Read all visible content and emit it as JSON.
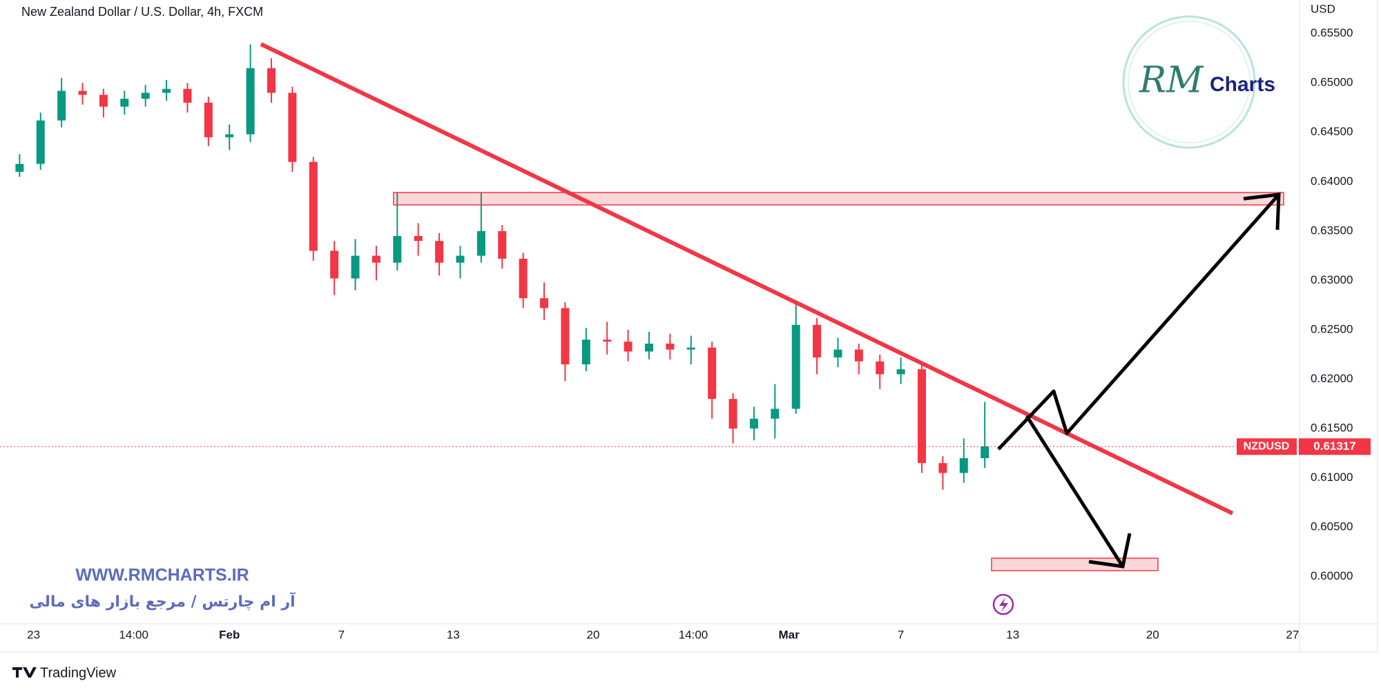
{
  "chart_data": {
    "type": "candlestick",
    "title": "New Zealand Dollar / U.S. Dollar, 4h, FXCM",
    "currency_label": "USD",
    "symbol": "NZDUSD",
    "last_price": 0.61317,
    "up_color": "#089981",
    "down_color": "#f23645",
    "grid": false,
    "x": [
      -0.5,
      0.25,
      1,
      1.75,
      2.5,
      3.25,
      4,
      4.75,
      5.5,
      6.25,
      7,
      7.75,
      8.5,
      9.25,
      10,
      10.75,
      11.5,
      12.25,
      13,
      13.75,
      14.5,
      15.25,
      16,
      16.75,
      17.5,
      18.25,
      19,
      19.75,
      20.5,
      21.25,
      22,
      22.75,
      23.5,
      24.25,
      25,
      25.75,
      26.5,
      27.25,
      28,
      28.75,
      29.5,
      30.25,
      31,
      31.75,
      32.5,
      33.25,
      34
    ],
    "open": [
      0.641,
      0.6418,
      0.6462,
      0.6492,
      0.6488,
      0.6476,
      0.6484,
      0.649,
      0.6494,
      0.648,
      0.6445,
      0.6448,
      0.6515,
      0.649,
      0.642,
      0.633,
      0.6302,
      0.6325,
      0.6318,
      0.6345,
      0.634,
      0.6318,
      0.6325,
      0.635,
      0.6322,
      0.6282,
      0.6272,
      0.6215,
      0.624,
      0.6238,
      0.6228,
      0.6236,
      0.623,
      0.6232,
      0.618,
      0.615,
      0.616,
      0.617,
      0.6255,
      0.6222,
      0.623,
      0.6218,
      0.6205,
      0.621,
      0.6115,
      0.6105,
      0.612
    ],
    "high": [
      0.6428,
      0.647,
      0.6505,
      0.65,
      0.6494,
      0.6492,
      0.6498,
      0.6503,
      0.65,
      0.6486,
      0.6458,
      0.6539,
      0.6525,
      0.6496,
      0.6425,
      0.634,
      0.6342,
      0.6335,
      0.6389,
      0.6358,
      0.6348,
      0.6335,
      0.6389,
      0.6356,
      0.6328,
      0.6298,
      0.6278,
      0.6252,
      0.6258,
      0.625,
      0.6248,
      0.6246,
      0.6244,
      0.6238,
      0.6186,
      0.6172,
      0.6195,
      0.6278,
      0.6262,
      0.6242,
      0.6236,
      0.6225,
      0.6222,
      0.6215,
      0.6122,
      0.614,
      0.6177
    ],
    "low": [
      0.6405,
      0.6412,
      0.6455,
      0.6478,
      0.6465,
      0.6468,
      0.6476,
      0.6482,
      0.647,
      0.6436,
      0.6432,
      0.644,
      0.648,
      0.641,
      0.632,
      0.6285,
      0.629,
      0.63,
      0.631,
      0.6325,
      0.6305,
      0.6302,
      0.6318,
      0.6312,
      0.6272,
      0.626,
      0.6198,
      0.6208,
      0.6225,
      0.6218,
      0.622,
      0.622,
      0.6215,
      0.616,
      0.6135,
      0.6138,
      0.614,
      0.6165,
      0.6205,
      0.6212,
      0.6205,
      0.619,
      0.6195,
      0.6105,
      0.6088,
      0.6095,
      0.611
    ],
    "close": [
      0.6418,
      0.6462,
      0.6492,
      0.6488,
      0.6476,
      0.6484,
      0.649,
      0.6494,
      0.648,
      0.6445,
      0.6448,
      0.6515,
      0.649,
      0.642,
      0.633,
      0.6302,
      0.6325,
      0.6318,
      0.6345,
      0.634,
      0.6318,
      0.6325,
      0.635,
      0.6322,
      0.6282,
      0.6272,
      0.6215,
      0.624,
      0.6238,
      0.6228,
      0.6236,
      0.623,
      0.6232,
      0.618,
      0.615,
      0.616,
      0.617,
      0.6255,
      0.6222,
      0.623,
      0.6218,
      0.6205,
      0.621,
      0.6115,
      0.6105,
      0.612,
      0.6132
    ],
    "xlim": [
      -1.2,
      45.25
    ],
    "ylim": [
      0.5953,
      0.6584
    ],
    "xticks": [
      {
        "value": 0,
        "label": "23"
      },
      {
        "value": 3.58,
        "label": "14:00"
      },
      {
        "value": 7,
        "label": "Feb"
      },
      {
        "value": 11,
        "label": "7"
      },
      {
        "value": 15,
        "label": "13"
      },
      {
        "value": 20,
        "label": "20"
      },
      {
        "value": 23.58,
        "label": "14:00"
      },
      {
        "value": 27,
        "label": "Mar"
      },
      {
        "value": 31,
        "label": "7"
      },
      {
        "value": 35,
        "label": "13"
      },
      {
        "value": 40,
        "label": "20"
      },
      {
        "value": 45,
        "label": "27"
      }
    ],
    "yticks": [
      {
        "value": 0.6,
        "label": "0.60000"
      },
      {
        "value": 0.605,
        "label": "0.60500"
      },
      {
        "value": 0.61,
        "label": "0.61000"
      },
      {
        "value": 0.615,
        "label": "0.61500"
      },
      {
        "value": 0.62,
        "label": "0.62000"
      },
      {
        "value": 0.625,
        "label": "0.62500"
      },
      {
        "value": 0.63,
        "label": "0.63000"
      },
      {
        "value": 0.635,
        "label": "0.63500"
      },
      {
        "value": 0.64,
        "label": "0.64000"
      },
      {
        "value": 0.645,
        "label": "0.64500"
      },
      {
        "value": 0.65,
        "label": "0.65000"
      },
      {
        "value": 0.655,
        "label": "0.65500"
      }
    ]
  },
  "watermark": {
    "logo_left": "RM",
    "logo_right": "Charts",
    "url": "WWW.RMCHARTS.IR",
    "tagline": "آر ام چارتس / مرجع بازار های مالی"
  },
  "footer": "TradingView"
}
